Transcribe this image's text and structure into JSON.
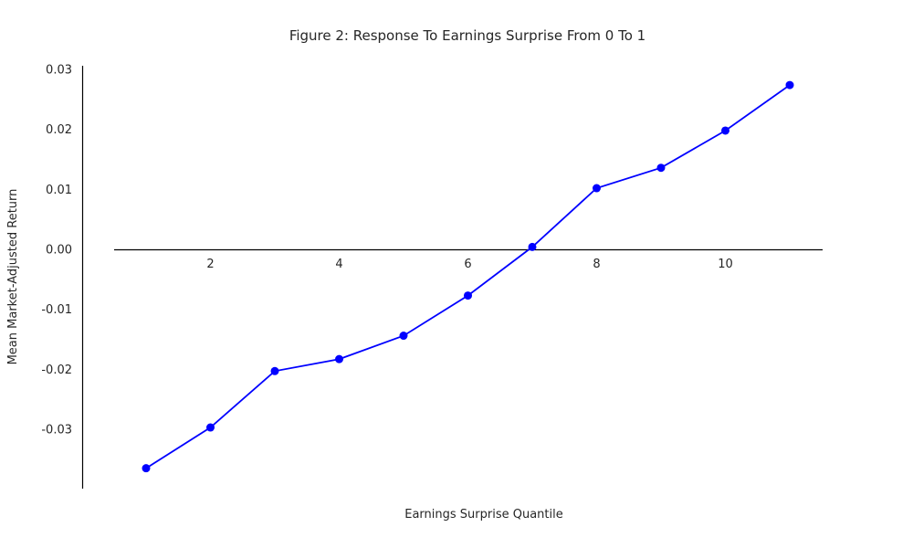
{
  "chart_data": {
    "type": "line",
    "title": "Figure 2: Response To Earnings Surprise From 0 To 1",
    "xlabel": "Earnings Surprise Quantile",
    "ylabel": "Mean Market-Adjusted Return",
    "xlim": [
      0.5,
      11.5
    ],
    "ylim": [
      -0.0395,
      0.0305
    ],
    "x_ticks": [
      2,
      4,
      6,
      8,
      10
    ],
    "x_tick_labels": [
      "2",
      "4",
      "6",
      "8",
      "10"
    ],
    "y_ticks": [
      -0.03,
      -0.02,
      -0.01,
      0.0,
      0.01,
      0.02,
      0.03
    ],
    "y_tick_labels": [
      "-0.03",
      "-0.02",
      "-0.01",
      "0.00",
      "0.01",
      "0.02",
      "0.03"
    ],
    "grid": false,
    "series": [
      {
        "color": "#0000ff",
        "marker": "circle",
        "x": [
          1,
          2,
          3,
          4,
          5,
          6,
          7,
          8,
          9,
          10,
          11
        ],
        "y": [
          -0.0365,
          -0.0297,
          -0.0203,
          -0.0183,
          -0.0144,
          -0.0077,
          0.0004,
          0.0102,
          0.0136,
          0.0198,
          0.0274
        ]
      }
    ]
  }
}
